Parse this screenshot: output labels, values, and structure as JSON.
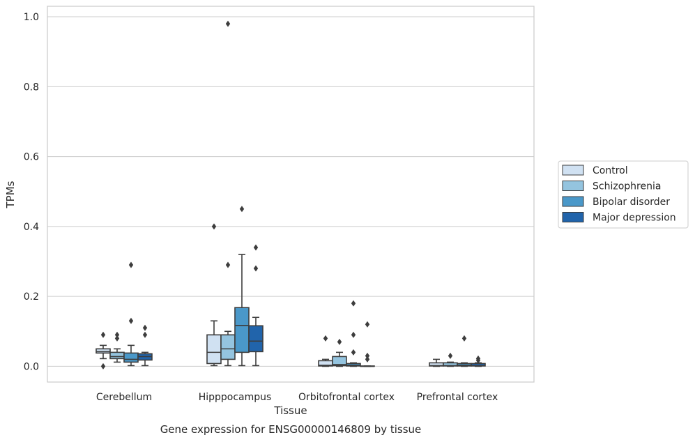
{
  "chart_data": {
    "type": "box",
    "xlabel": "Tissue",
    "ylabel": "TPMs",
    "caption": "Gene expression for ENSG00000146809 by tissue",
    "ylim": [
      -0.045,
      1.03
    ],
    "yticks": [
      0.0,
      0.2,
      0.4,
      0.6,
      0.8,
      1.0
    ],
    "ytick_labels": [
      "0.0",
      "0.2",
      "0.4",
      "0.6",
      "0.8",
      "1.0"
    ],
    "grid": true,
    "legend_position": "right",
    "categories": [
      "Cerebellum",
      "Hipppocampus",
      "Orbitofrontal cortex",
      "Prefrontal cortex"
    ],
    "series": [
      {
        "name": "Control",
        "color": "#d0e1f2",
        "boxes": [
          {
            "whislo": 0.022,
            "q1": 0.038,
            "med": 0.042,
            "q3": 0.05,
            "whishi": 0.06,
            "fliers": [
              0.09,
              0.0
            ]
          },
          {
            "whislo": 0.002,
            "q1": 0.008,
            "med": 0.04,
            "q3": 0.09,
            "whishi": 0.13,
            "fliers": [
              0.4
            ]
          },
          {
            "whislo": 0.0,
            "q1": 0.001,
            "med": 0.003,
            "q3": 0.016,
            "whishi": 0.02,
            "fliers": [
              0.08
            ]
          },
          {
            "whislo": 0.0,
            "q1": 0.001,
            "med": 0.002,
            "q3": 0.01,
            "whishi": 0.02,
            "fliers": []
          }
        ]
      },
      {
        "name": "Schizophrenia",
        "color": "#94c4df",
        "boxes": [
          {
            "whislo": 0.012,
            "q1": 0.022,
            "med": 0.028,
            "q3": 0.04,
            "whishi": 0.05,
            "fliers": [
              0.09,
              0.08
            ]
          },
          {
            "whislo": 0.002,
            "q1": 0.02,
            "med": 0.05,
            "q3": 0.09,
            "whishi": 0.1,
            "fliers": [
              0.29,
              0.98
            ]
          },
          {
            "whislo": 0.0,
            "q1": 0.002,
            "med": 0.005,
            "q3": 0.028,
            "whishi": 0.04,
            "fliers": [
              0.07
            ]
          },
          {
            "whislo": 0.0,
            "q1": 0.001,
            "med": 0.002,
            "q3": 0.01,
            "whishi": 0.012,
            "fliers": [
              0.03
            ]
          }
        ]
      },
      {
        "name": "Bipolar disorder",
        "color": "#4a98c9",
        "boxes": [
          {
            "whislo": 0.002,
            "q1": 0.012,
            "med": 0.02,
            "q3": 0.038,
            "whishi": 0.06,
            "fliers": [
              0.29,
              0.13
            ]
          },
          {
            "whislo": 0.002,
            "q1": 0.04,
            "med": 0.117,
            "q3": 0.168,
            "whishi": 0.32,
            "fliers": [
              0.45
            ]
          },
          {
            "whislo": 0.0,
            "q1": 0.001,
            "med": 0.003,
            "q3": 0.008,
            "whishi": 0.01,
            "fliers": [
              0.18,
              0.09,
              0.04
            ]
          },
          {
            "whislo": 0.0,
            "q1": 0.001,
            "med": 0.003,
            "q3": 0.008,
            "whishi": 0.01,
            "fliers": [
              0.08
            ]
          }
        ]
      },
      {
        "name": "Major depression",
        "color": "#2164ab",
        "boxes": [
          {
            "whislo": 0.002,
            "q1": 0.018,
            "med": 0.028,
            "q3": 0.036,
            "whishi": 0.04,
            "fliers": [
              0.11,
              0.09
            ]
          },
          {
            "whislo": 0.002,
            "q1": 0.042,
            "med": 0.072,
            "q3": 0.116,
            "whishi": 0.14,
            "fliers": [
              0.34,
              0.28
            ]
          },
          {
            "whislo": 0.0,
            "q1": 0.0,
            "med": 0.0,
            "q3": 0.001,
            "whishi": 0.001,
            "fliers": [
              0.12,
              0.03,
              0.02
            ]
          },
          {
            "whislo": 0.0,
            "q1": 0.001,
            "med": 0.002,
            "q3": 0.008,
            "whishi": 0.01,
            "fliers": [
              0.022,
              0.017
            ]
          }
        ]
      }
    ]
  }
}
